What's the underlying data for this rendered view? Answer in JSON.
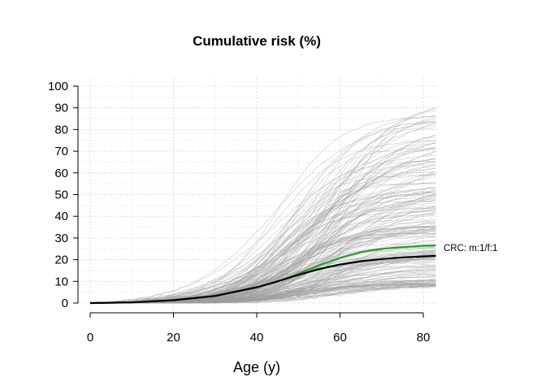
{
  "chart_data": {
    "type": "line",
    "title": "Cumulative risk (%)",
    "xlabel": "Age (y)",
    "ylabel": "",
    "xlim": [
      0,
      83
    ],
    "ylim": [
      0,
      100
    ],
    "xticks": [
      0,
      20,
      40,
      60,
      80
    ],
    "yticks": [
      0,
      10,
      20,
      30,
      40,
      50,
      60,
      70,
      80,
      90,
      100
    ],
    "grid": true,
    "annotation": "CRC: m:1/f:1",
    "background_series": {
      "color": "#9e9e9e",
      "description_count": 200,
      "plateau_range": [
        8,
        93
      ],
      "midpoint_age_range": [
        44,
        62
      ]
    },
    "series": [
      {
        "color": "#21a321",
        "x": [
          0,
          10,
          20,
          30,
          40,
          45,
          50,
          55,
          60,
          65,
          70,
          75,
          80,
          83
        ],
        "y": [
          0,
          0.3,
          1.3,
          3.2,
          7.2,
          10,
          13.5,
          17.5,
          20.8,
          23.5,
          25,
          25.8,
          26.4,
          26.6
        ]
      },
      {
        "color": "#000000",
        "x": [
          0,
          10,
          20,
          30,
          40,
          45,
          50,
          55,
          60,
          65,
          70,
          75,
          80,
          83
        ],
        "y": [
          0,
          0.3,
          1.3,
          3.3,
          7.3,
          10,
          13,
          15.7,
          17.8,
          19.3,
          20.3,
          21,
          21.5,
          21.8
        ]
      }
    ]
  }
}
